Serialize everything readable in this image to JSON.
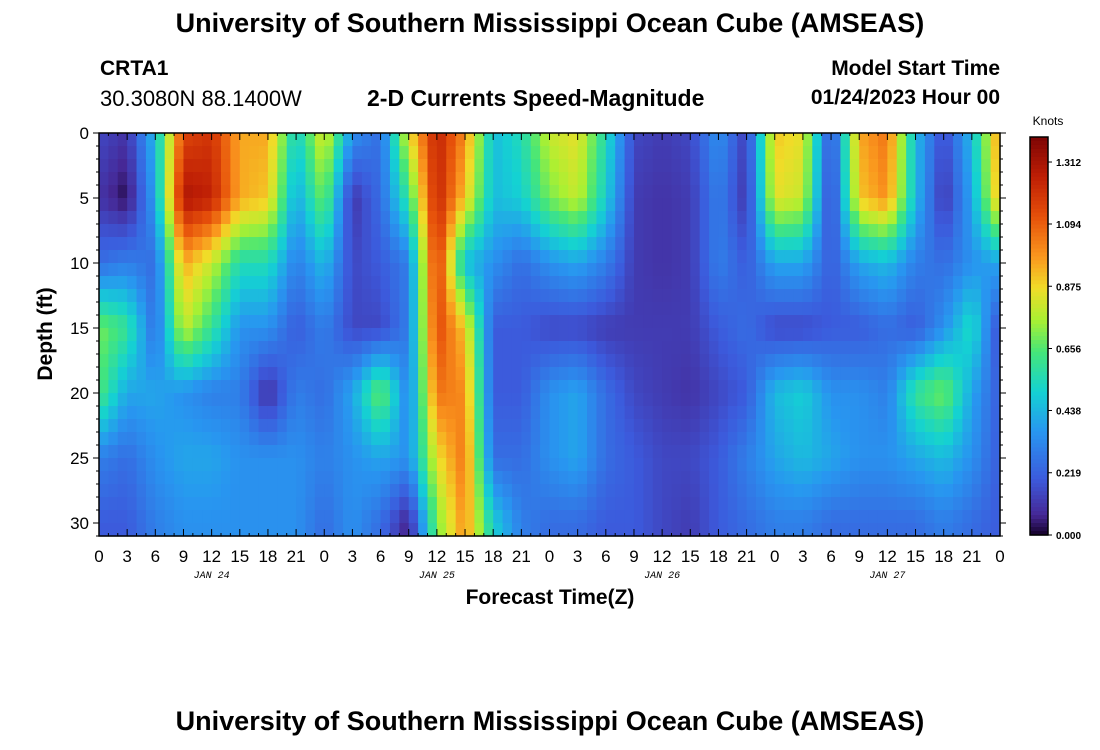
{
  "title": "University of Southern Mississippi Ocean Cube (AMSEAS)",
  "footer_title": "University of Southern Mississippi Ocean Cube (AMSEAS)",
  "station": "CRTA1",
  "coordinates": "30.3080N  88.1400W",
  "subtitle": "2-D Currents Speed-Magnitude",
  "model_start_label": "Model Start Time",
  "model_start_value": "01/24/2023 Hour 00",
  "chart_data": {
    "type": "heatmap",
    "title": "2-D Currents Speed-Magnitude",
    "xlabel": "Forecast Time(Z)",
    "ylabel": "Depth (ft)",
    "colorbar_label": "Knots",
    "x_range_hours": [
      0,
      96
    ],
    "y_range_ft": [
      0,
      31
    ],
    "y_ticks": [
      0,
      5,
      10,
      15,
      20,
      25,
      30
    ],
    "x_tick_labels": [
      "0",
      "3",
      "6",
      "9",
      "12",
      "15",
      "18",
      "21",
      "0",
      "3",
      "6",
      "9",
      "12",
      "15",
      "18",
      "21",
      "0",
      "3",
      "6",
      "9",
      "12",
      "15",
      "18",
      "21",
      "0",
      "3",
      "6",
      "9",
      "12",
      "15",
      "18",
      "21",
      "0"
    ],
    "day_labels": [
      {
        "text": "JAN 24",
        "hour": 12
      },
      {
        "text": "JAN 25",
        "hour": 36
      },
      {
        "text": "JAN 26",
        "hour": 60
      },
      {
        "text": "JAN 27",
        "hour": 84
      }
    ],
    "colorbar_ticks": [
      0.0,
      0.219,
      0.438,
      0.656,
      0.875,
      1.094,
      1.312
    ],
    "colorbar_tick_labels": [
      "0.000",
      "0.219",
      "0.438",
      "0.656",
      "0.875",
      "1.094",
      "1.312"
    ],
    "value_range": [
      0,
      1.4
    ],
    "grid": false,
    "speed_grid_knots": {
      "hours": [
        0,
        3,
        6,
        9,
        12,
        15,
        18,
        21,
        24,
        27,
        30,
        33,
        36,
        39,
        42,
        45,
        48,
        51,
        54,
        57,
        60,
        63,
        66,
        69,
        72,
        75,
        78,
        81,
        84,
        87,
        90,
        93,
        96
      ],
      "depths_ft": [
        0,
        5,
        10,
        15,
        20,
        25,
        30
      ],
      "values": [
        [
          0.15,
          0.1,
          0.45,
          1.15,
          1.2,
          0.95,
          0.95,
          0.5,
          0.85,
          0.35,
          0.25,
          0.85,
          1.25,
          1.0,
          0.45,
          0.55,
          0.8,
          0.85,
          0.55,
          0.15,
          0.12,
          0.15,
          0.35,
          0.12,
          0.9,
          0.85,
          0.15,
          0.95,
          1.05,
          0.45,
          0.15,
          0.45,
          1.0
        ],
        [
          0.1,
          0.02,
          0.4,
          1.3,
          1.25,
          0.95,
          0.9,
          0.4,
          0.7,
          0.1,
          0.25,
          0.6,
          1.25,
          0.9,
          0.45,
          0.5,
          0.7,
          0.8,
          0.5,
          0.12,
          0.1,
          0.12,
          0.3,
          0.1,
          0.85,
          0.8,
          0.12,
          0.9,
          1.0,
          0.45,
          0.1,
          0.4,
          0.95
        ],
        [
          0.25,
          0.3,
          0.25,
          0.95,
          0.8,
          0.55,
          0.55,
          0.3,
          0.45,
          0.15,
          0.2,
          0.3,
          1.2,
          0.45,
          0.35,
          0.25,
          0.35,
          0.4,
          0.3,
          0.12,
          0.1,
          0.12,
          0.3,
          0.2,
          0.4,
          0.4,
          0.2,
          0.4,
          0.45,
          0.3,
          0.25,
          0.35,
          0.4
        ],
        [
          0.7,
          0.6,
          0.25,
          0.8,
          0.6,
          0.35,
          0.35,
          0.2,
          0.3,
          0.15,
          0.15,
          0.3,
          1.15,
          0.9,
          0.2,
          0.2,
          0.15,
          0.15,
          0.12,
          0.12,
          0.12,
          0.12,
          0.2,
          0.25,
          0.15,
          0.15,
          0.2,
          0.2,
          0.25,
          0.2,
          0.35,
          0.55,
          0.15
        ],
        [
          0.65,
          0.4,
          0.4,
          0.35,
          0.3,
          0.3,
          0.08,
          0.3,
          0.25,
          0.4,
          0.7,
          0.3,
          1.05,
          1.0,
          0.2,
          0.2,
          0.35,
          0.4,
          0.25,
          0.15,
          0.12,
          0.1,
          0.15,
          0.2,
          0.45,
          0.5,
          0.35,
          0.35,
          0.3,
          0.6,
          0.7,
          0.4,
          0.2
        ],
        [
          0.3,
          0.25,
          0.35,
          0.4,
          0.4,
          0.35,
          0.35,
          0.35,
          0.3,
          0.35,
          0.4,
          0.35,
          0.85,
          1.05,
          0.25,
          0.25,
          0.35,
          0.4,
          0.25,
          0.2,
          0.15,
          0.15,
          0.2,
          0.3,
          0.4,
          0.45,
          0.4,
          0.35,
          0.35,
          0.4,
          0.45,
          0.35,
          0.2
        ],
        [
          0.2,
          0.2,
          0.3,
          0.35,
          0.35,
          0.35,
          0.35,
          0.35,
          0.25,
          0.35,
          0.25,
          0.05,
          0.7,
          1.0,
          0.5,
          0.3,
          0.25,
          0.25,
          0.2,
          0.2,
          0.15,
          0.12,
          0.2,
          0.25,
          0.3,
          0.3,
          0.25,
          0.25,
          0.25,
          0.25,
          0.3,
          0.25,
          0.2
        ]
      ]
    }
  }
}
